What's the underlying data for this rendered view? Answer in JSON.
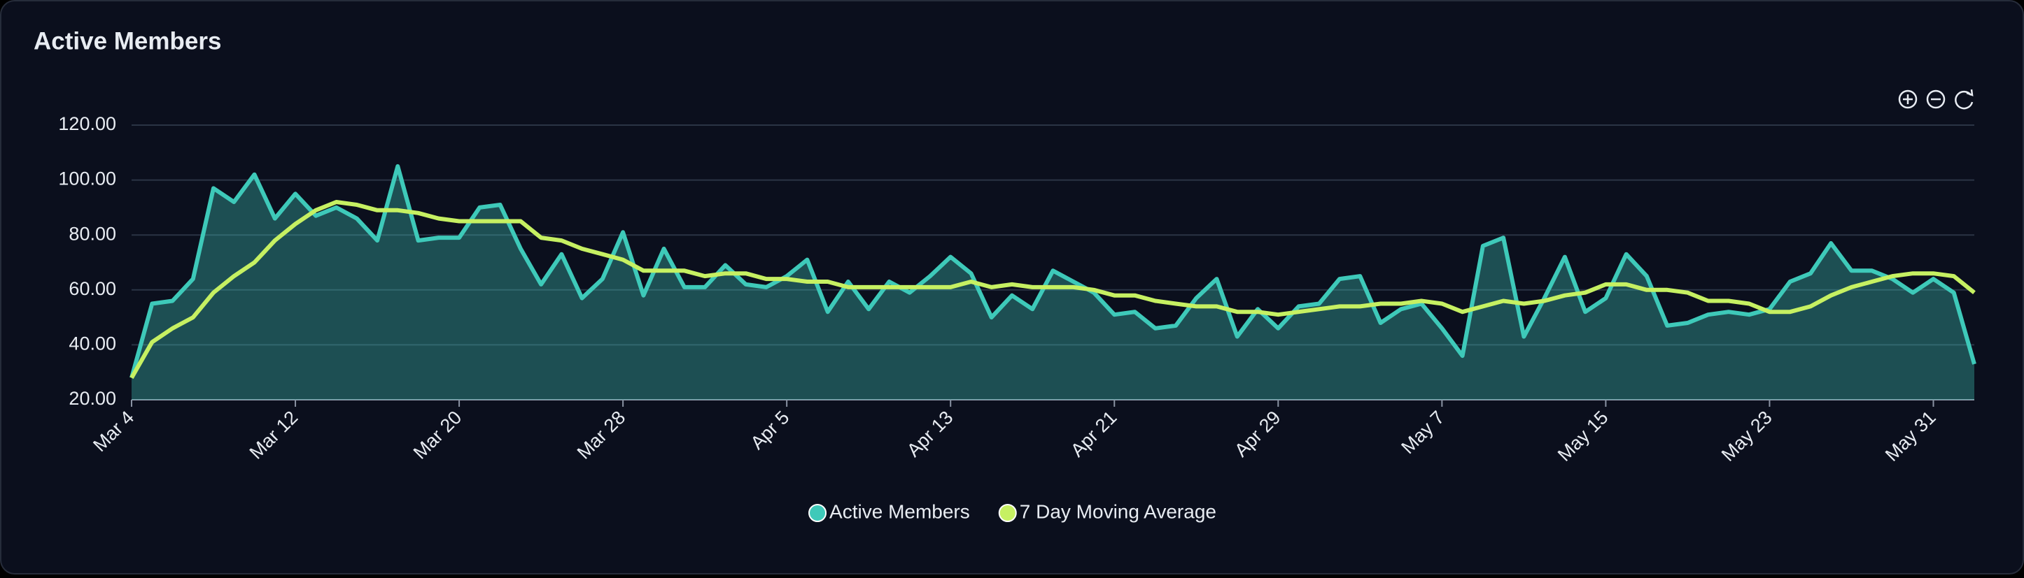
{
  "chart_data": {
    "type": "line",
    "title": "Active Members",
    "categories": [
      "Mar 4",
      null,
      null,
      null,
      null,
      null,
      null,
      null,
      "Mar 12",
      null,
      null,
      null,
      null,
      null,
      null,
      null,
      "Mar 20",
      null,
      null,
      null,
      null,
      null,
      null,
      null,
      "Mar 28",
      null,
      null,
      null,
      null,
      null,
      null,
      null,
      "Apr 5",
      null,
      null,
      null,
      null,
      null,
      null,
      null,
      "Apr 13",
      null,
      null,
      null,
      null,
      null,
      null,
      null,
      "Apr 21",
      null,
      null,
      null,
      null,
      null,
      null,
      null,
      "Apr 29",
      null,
      null,
      null,
      null,
      null,
      null,
      null,
      "May 7",
      null,
      null,
      null,
      null,
      null,
      null,
      null,
      "May 15",
      null,
      null,
      null,
      null,
      null,
      null,
      null,
      "May 23",
      null,
      null,
      null,
      null,
      null,
      null,
      null,
      "May 31",
      null,
      null
    ],
    "series": [
      {
        "name": "Active Members",
        "color": "#3ec9b9",
        "area": true,
        "values": [
          28,
          55,
          56,
          64,
          97,
          92,
          102,
          86,
          95,
          87,
          90,
          86,
          78,
          105,
          78,
          79,
          79,
          90,
          91,
          75,
          62,
          73,
          57,
          64,
          81,
          58,
          75,
          61,
          61,
          69,
          62,
          61,
          65,
          71,
          52,
          63,
          53,
          63,
          59,
          65,
          72,
          66,
          50,
          58,
          53,
          67,
          63,
          59,
          51,
          52,
          46,
          47,
          57,
          64,
          43,
          53,
          46,
          54,
          55,
          64,
          65,
          48,
          53,
          55,
          46,
          36,
          76,
          79,
          43,
          57,
          72,
          52,
          57,
          73,
          65,
          47,
          48,
          51,
          52,
          51,
          53,
          63,
          66,
          77,
          67,
          67,
          64,
          59,
          64,
          59,
          33
        ]
      },
      {
        "name": "7 Day Moving Average",
        "color": "#c6f062",
        "area": false,
        "values": [
          28,
          41,
          46,
          50,
          59,
          65,
          70,
          78,
          84,
          89,
          92,
          91,
          89,
          89,
          88,
          86,
          85,
          85,
          85,
          85,
          79,
          78,
          75,
          73,
          71,
          67,
          67,
          67,
          65,
          66,
          66,
          64,
          64,
          63,
          63,
          61,
          61,
          61,
          61,
          61,
          61,
          63,
          61,
          62,
          61,
          61,
          61,
          60,
          58,
          58,
          56,
          55,
          54,
          54,
          52,
          52,
          51,
          52,
          53,
          54,
          54,
          55,
          55,
          56,
          55,
          52,
          54,
          56,
          55,
          56,
          58,
          59,
          62,
          62,
          60,
          60,
          59,
          56,
          56,
          55,
          52,
          52,
          54,
          58,
          61,
          63,
          65,
          66,
          66,
          65,
          59
        ]
      }
    ],
    "ylim": [
      20,
      120
    ],
    "yticks": [
      {
        "value": 20,
        "label": "20.00"
      },
      {
        "value": 40,
        "label": "40.00"
      },
      {
        "value": 60,
        "label": "60.00"
      },
      {
        "value": 80,
        "label": "80.00"
      },
      {
        "value": 100,
        "label": "100.00"
      },
      {
        "value": 120,
        "label": "120.00"
      }
    ],
    "grid": true,
    "legend": "bottom"
  }
}
